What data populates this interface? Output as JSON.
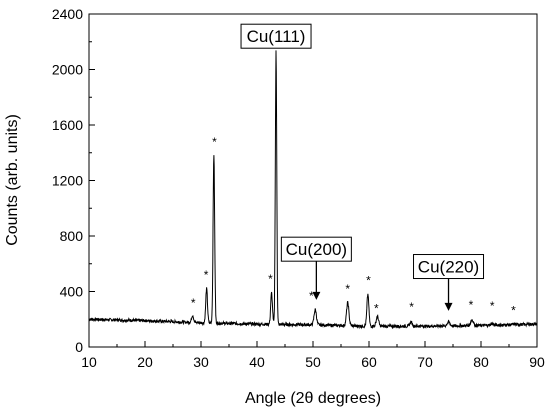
{
  "chart_data": {
    "type": "line",
    "title": "",
    "xlabel": "Angle (2θ degrees)",
    "ylabel": "Counts (arb. units)",
    "xlim": [
      10,
      90
    ],
    "ylim": [
      0,
      2400
    ],
    "x_ticks": [
      10,
      20,
      30,
      40,
      50,
      60,
      70,
      80,
      90
    ],
    "y_ticks": [
      0,
      400,
      800,
      1200,
      1600,
      2000,
      2400
    ],
    "grid": false,
    "legend": "none",
    "baseline": [
      [
        10,
        200
      ],
      [
        20,
        190
      ],
      [
        30,
        175
      ],
      [
        40,
        165
      ],
      [
        50,
        160
      ],
      [
        60,
        150
      ],
      [
        70,
        150
      ],
      [
        80,
        155
      ],
      [
        90,
        165
      ]
    ],
    "peaks": [
      {
        "x": 28.5,
        "y": 230,
        "width": 0.25
      },
      {
        "x": 31.0,
        "y": 420,
        "width": 0.22
      },
      {
        "x": 32.3,
        "y": 1380,
        "width": 0.2
      },
      {
        "x": 42.6,
        "y": 390,
        "width": 0.22
      },
      {
        "x": 43.4,
        "y": 2130,
        "width": 0.18
      },
      {
        "x": 50.4,
        "y": 270,
        "width": 0.3
      },
      {
        "x": 56.2,
        "y": 320,
        "width": 0.3
      },
      {
        "x": 59.8,
        "y": 380,
        "width": 0.25
      },
      {
        "x": 61.5,
        "y": 220,
        "width": 0.3
      },
      {
        "x": 67.5,
        "y": 180,
        "width": 0.3
      },
      {
        "x": 74.2,
        "y": 180,
        "width": 0.35
      },
      {
        "x": 78.4,
        "y": 195,
        "width": 0.35
      },
      {
        "x": 82.0,
        "y": 170,
        "width": 0.35
      },
      {
        "x": 86.0,
        "y": 165,
        "width": 0.35
      }
    ],
    "asterisks": [
      {
        "text": "*",
        "x": 28.6,
        "y": 290
      },
      {
        "text": "*",
        "x": 30.9,
        "y": 490
      },
      {
        "text": "*",
        "x": 32.4,
        "y": 1450
      },
      {
        "text": "*",
        "x": 42.4,
        "y": 460
      },
      {
        "text": "*",
        "x": 49.7,
        "y": 340
      },
      {
        "text": "*",
        "x": 56.2,
        "y": 390
      },
      {
        "text": "*",
        "x": 59.9,
        "y": 450
      },
      {
        "text": "*",
        "x": 61.3,
        "y": 250
      },
      {
        "text": "*",
        "x": 67.6,
        "y": 260
      },
      {
        "text": "*",
        "x": 78.2,
        "y": 275
      },
      {
        "text": "*",
        "x": 82.0,
        "y": 265
      },
      {
        "text": "*",
        "x": 85.8,
        "y": 235
      }
    ],
    "annotations": [
      {
        "text": "Cu(111)",
        "x": 43.4,
        "y": 2240,
        "arrow_to": null
      },
      {
        "text": "Cu(200)",
        "x": 50.6,
        "y": 705,
        "arrow_to": [
          50.6,
          340
        ]
      },
      {
        "text": "Cu(220)",
        "x": 74.2,
        "y": 580,
        "arrow_to": [
          74.2,
          260
        ]
      }
    ]
  }
}
